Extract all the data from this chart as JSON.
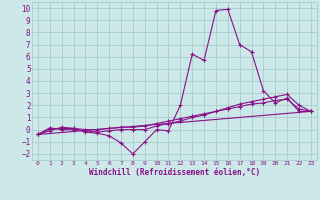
{
  "xlabel": "Windchill (Refroidissement éolien,°C)",
  "bg_color": "#cce8e8",
  "grid_color": "#aacccc",
  "line_color": "#881188",
  "xlim": [
    -0.5,
    23.5
  ],
  "ylim": [
    -2.5,
    10.5
  ],
  "yticks": [
    -2,
    -1,
    0,
    1,
    2,
    3,
    4,
    5,
    6,
    7,
    8,
    9,
    10
  ],
  "xticks": [
    0,
    1,
    2,
    3,
    4,
    5,
    6,
    7,
    8,
    9,
    10,
    11,
    12,
    13,
    14,
    15,
    16,
    17,
    18,
    19,
    20,
    21,
    22,
    23
  ],
  "line1_x": [
    0,
    1,
    2,
    3,
    4,
    5,
    6,
    7,
    8,
    9,
    10,
    11,
    12,
    13,
    14,
    15,
    16,
    17,
    18,
    19,
    20,
    21,
    22,
    23
  ],
  "line1_y": [
    -0.4,
    -0.1,
    0.2,
    0.1,
    -0.2,
    -0.3,
    -0.5,
    -1.1,
    -2.0,
    -1.0,
    0.0,
    -0.1,
    2.0,
    6.2,
    5.7,
    9.8,
    9.9,
    7.0,
    6.4,
    3.2,
    2.2,
    2.6,
    1.5,
    1.5
  ],
  "line2_x": [
    0,
    1,
    2,
    3,
    4,
    5,
    6,
    7,
    8,
    9,
    10,
    11,
    12,
    13,
    14,
    15,
    16,
    17,
    18,
    19,
    20,
    21,
    22,
    23
  ],
  "line2_y": [
    -0.4,
    0.15,
    0.0,
    0.0,
    -0.1,
    -0.2,
    -0.1,
    0.0,
    0.0,
    0.0,
    0.3,
    0.5,
    0.7,
    1.0,
    1.2,
    1.5,
    1.8,
    2.1,
    2.3,
    2.5,
    2.7,
    2.9,
    2.0,
    1.5
  ],
  "line3_x": [
    0,
    1,
    2,
    3,
    4,
    5,
    6,
    7,
    8,
    9,
    10,
    11,
    12,
    13,
    14,
    15,
    16,
    17,
    18,
    19,
    20,
    21,
    22,
    23
  ],
  "line3_y": [
    -0.4,
    0.05,
    0.1,
    0.1,
    0.0,
    0.0,
    0.1,
    0.2,
    0.2,
    0.3,
    0.5,
    0.7,
    0.9,
    1.1,
    1.3,
    1.5,
    1.7,
    1.9,
    2.1,
    2.2,
    2.4,
    2.5,
    1.7,
    1.5
  ],
  "line4_x": [
    0,
    23
  ],
  "line4_y": [
    -0.4,
    1.5
  ]
}
